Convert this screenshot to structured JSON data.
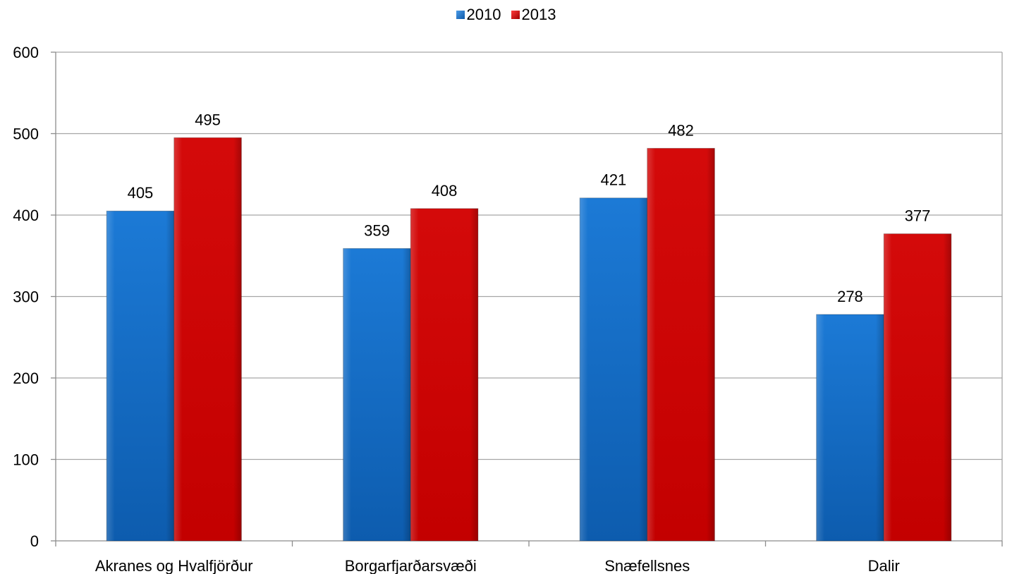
{
  "chart_data": {
    "type": "bar",
    "categories": [
      "Akranes og Hvalfjörður",
      "Borgarfjarðarsvæði",
      "Snæfellsnes",
      "Dalir"
    ],
    "series": [
      {
        "name": "2010",
        "values": [
          405,
          359,
          421,
          278
        ],
        "color": "#1f6fc6"
      },
      {
        "name": "2013",
        "values": [
          495,
          408,
          482,
          377
        ],
        "color": "#c80000"
      }
    ],
    "yticks": [
      0,
      100,
      200,
      300,
      400,
      500,
      600
    ],
    "ylim": [
      0,
      600
    ],
    "grid": true,
    "legend_position": "top-center",
    "data_labels": true
  }
}
